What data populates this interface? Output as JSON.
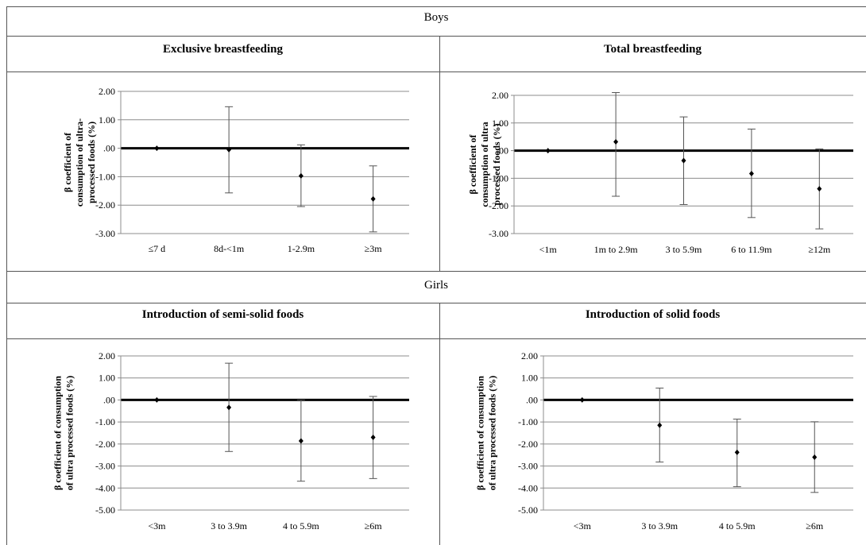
{
  "sections": [
    {
      "title": "Boys"
    },
    {
      "title": "Girls"
    }
  ],
  "chart_data": [
    {
      "type": "scatter",
      "title": "Exclusive breastfeeding",
      "ylabel": [
        "β coefficient of",
        "consumption of ultra-",
        "processed foods (%)"
      ],
      "categories": [
        "≤7 d",
        "8d-<1m",
        "1-2.9m",
        "≥3m"
      ],
      "values": [
        0.0,
        -0.05,
        -0.97,
        -1.78
      ],
      "ci_low": [
        0.0,
        -1.57,
        -2.05,
        -2.94
      ],
      "ci_high": [
        0.0,
        1.46,
        0.12,
        -0.62
      ],
      "ylim": [
        -3,
        2
      ],
      "yticks": [
        2,
        1,
        0,
        -1,
        -2,
        -3
      ],
      "ytick_labels": [
        "2.00",
        "1.00",
        ".00",
        "-1.00",
        "-2.00",
        "-3.00"
      ],
      "grid": true
    },
    {
      "type": "scatter",
      "title": "Total breastfeeding",
      "ylabel": [
        "β coefficient of",
        "consumption of ultra",
        "processed foods (%)"
      ],
      "categories": [
        "<1m",
        "1m to 2.9m",
        "3 to 5.9m",
        "6 to 11.9m",
        "≥12m"
      ],
      "values": [
        0.0,
        0.32,
        -0.36,
        -0.83,
        -1.38
      ],
      "ci_low": [
        0.0,
        -1.65,
        -1.95,
        -2.42,
        -2.83
      ],
      "ci_high": [
        0.0,
        2.1,
        1.22,
        0.78,
        0.06
      ],
      "ylim": [
        -3,
        2
      ],
      "yticks": [
        2,
        1,
        0,
        -1,
        -2,
        -3
      ],
      "ytick_labels": [
        "2.00",
        "1.00",
        ".00",
        "-1.00",
        "-2.00",
        "-3.00"
      ],
      "grid": true
    },
    {
      "type": "scatter",
      "title": "Introduction of semi-solid foods",
      "ylabel": [
        "β coefficient of consumption",
        "of ultra processed foods (%)"
      ],
      "categories": [
        "<3m",
        "3 to 3.9m",
        "4 to 5.9m",
        "≥6m"
      ],
      "values": [
        0.0,
        -0.34,
        -1.86,
        -1.7
      ],
      "ci_low": [
        0.0,
        -2.34,
        -3.69,
        -3.57
      ],
      "ci_high": [
        0.0,
        1.67,
        0.0,
        0.16
      ],
      "ylim": [
        -5,
        2
      ],
      "yticks": [
        2,
        1,
        0,
        -1,
        -2,
        -3,
        -4,
        -5
      ],
      "ytick_labels": [
        "2.00",
        "1.00",
        ".00",
        "-1.00",
        "-2.00",
        "-3.00",
        "-4.00",
        "-5.00"
      ],
      "grid": true
    },
    {
      "type": "scatter",
      "title": "Introduction of solid foods",
      "ylabel": [
        "β coefficient of consumption",
        "of ultra processed foods (%)"
      ],
      "categories": [
        "<3m",
        "3 to 3.9m",
        "4 to 5.9m",
        "≥6m"
      ],
      "values": [
        0.0,
        -1.15,
        -2.38,
        -2.6
      ],
      "ci_low": [
        0.0,
        -2.82,
        -3.94,
        -4.2
      ],
      "ci_high": [
        0.0,
        0.54,
        -0.87,
        -0.99
      ],
      "ylim": [
        -5,
        2
      ],
      "yticks": [
        2,
        1,
        0,
        -1,
        -2,
        -3,
        -4,
        -5
      ],
      "ytick_labels": [
        "2.00",
        "1.00",
        ".00",
        "-1.00",
        "-2.00",
        "-3.00",
        "-4.00",
        "-5.00"
      ],
      "grid": true
    }
  ]
}
